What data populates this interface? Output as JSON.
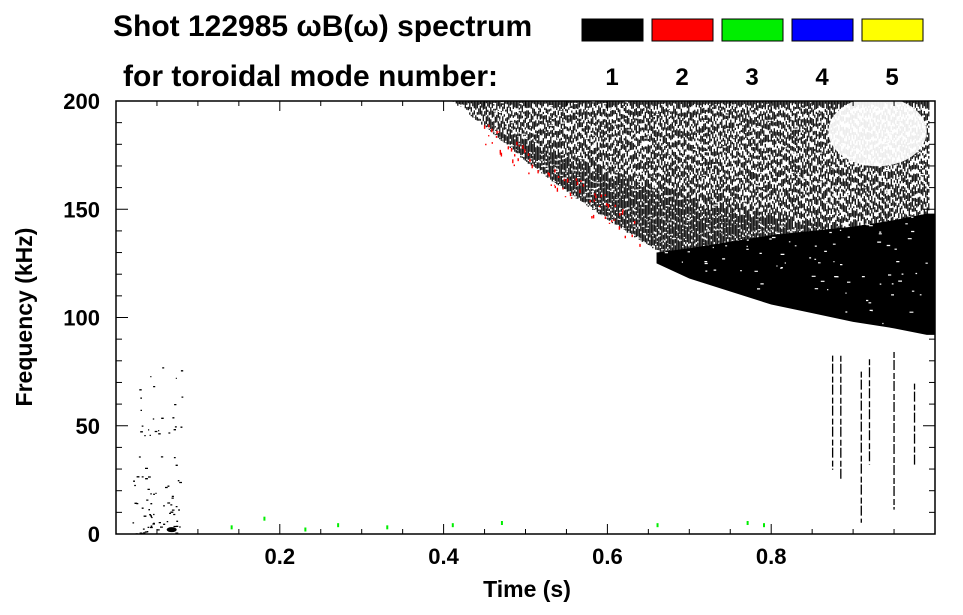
{
  "chart_data": {
    "type": "heatmap",
    "title": "Shot 122985 ωB(ω) spectrum",
    "subtitle": "for toroidal mode number:",
    "xlabel": "Time (s)",
    "ylabel": "Frequency (kHz)",
    "xlim": [
      0.0,
      1.0
    ],
    "ylim": [
      0,
      200
    ],
    "x_ticks": [
      {
        "value": 0.2,
        "label": "0.2"
      },
      {
        "value": 0.4,
        "label": "0.4"
      },
      {
        "value": 0.6,
        "label": "0.6"
      },
      {
        "value": 0.8,
        "label": "0.8"
      }
    ],
    "y_ticks": [
      {
        "value": 0,
        "label": "0"
      },
      {
        "value": 50,
        "label": "50"
      },
      {
        "value": 100,
        "label": "100"
      },
      {
        "value": 150,
        "label": "150"
      },
      {
        "value": 200,
        "label": "200"
      }
    ],
    "legend": {
      "placement": "top-right",
      "entries": [
        {
          "label": "1",
          "color": "#000000"
        },
        {
          "label": "2",
          "color": "#ff0000"
        },
        {
          "label": "3",
          "color": "#00ee00"
        },
        {
          "label": "4",
          "color": "#0000ff"
        },
        {
          "label": "5",
          "color": "#ffff00"
        }
      ]
    },
    "features": {
      "main_band_lower_edge": {
        "mode": 1,
        "t": [
          0.41,
          0.46,
          0.5,
          0.55,
          0.6,
          0.65,
          0.7,
          0.75,
          0.8,
          0.85,
          0.9,
          0.95,
          0.99
        ],
        "f_khz": [
          200,
          185,
          172,
          158,
          145,
          133,
          123,
          115,
          109,
          104,
          100,
          96,
          92
        ]
      },
      "main_band_upper_edge_khz": 200,
      "mode2_fringe": {
        "mode": 2,
        "t": [
          0.44,
          0.47,
          0.5,
          0.53,
          0.56,
          0.6,
          0.64
        ],
        "f_khz": [
          190,
          182,
          172,
          165,
          158,
          150,
          140
        ]
      },
      "dense_core": {
        "mode": 1,
        "t": [
          0.66,
          0.7,
          0.75,
          0.8,
          0.85,
          0.9,
          0.95,
          0.99
        ],
        "f_top_khz": [
          130,
          132,
          135,
          138,
          140,
          142,
          145,
          148
        ],
        "f_bottom_khz": [
          125,
          118,
          112,
          106,
          102,
          98,
          95,
          92
        ]
      },
      "upper_right_gap": {
        "t": [
          0.86,
          0.98
        ],
        "f_khz": [
          168,
          200
        ]
      },
      "early_low_freq_activity": {
        "mode": 1,
        "t": [
          0.02,
          0.08
        ],
        "f_khz": [
          0,
          80
        ]
      },
      "vertical_streaks": {
        "mode": 1,
        "t": [
          0.875,
          0.885,
          0.91,
          0.92,
          0.95,
          0.975
        ],
        "f_khz": [
          5,
          85
        ]
      },
      "mode3_low_freq_dots": {
        "mode": 3,
        "t": [
          0.14,
          0.18,
          0.23,
          0.27,
          0.33,
          0.41,
          0.47,
          0.66,
          0.77,
          0.79
        ],
        "f_khz": [
          4,
          8,
          3,
          5,
          4,
          5,
          6,
          5,
          6,
          5
        ]
      }
    }
  }
}
